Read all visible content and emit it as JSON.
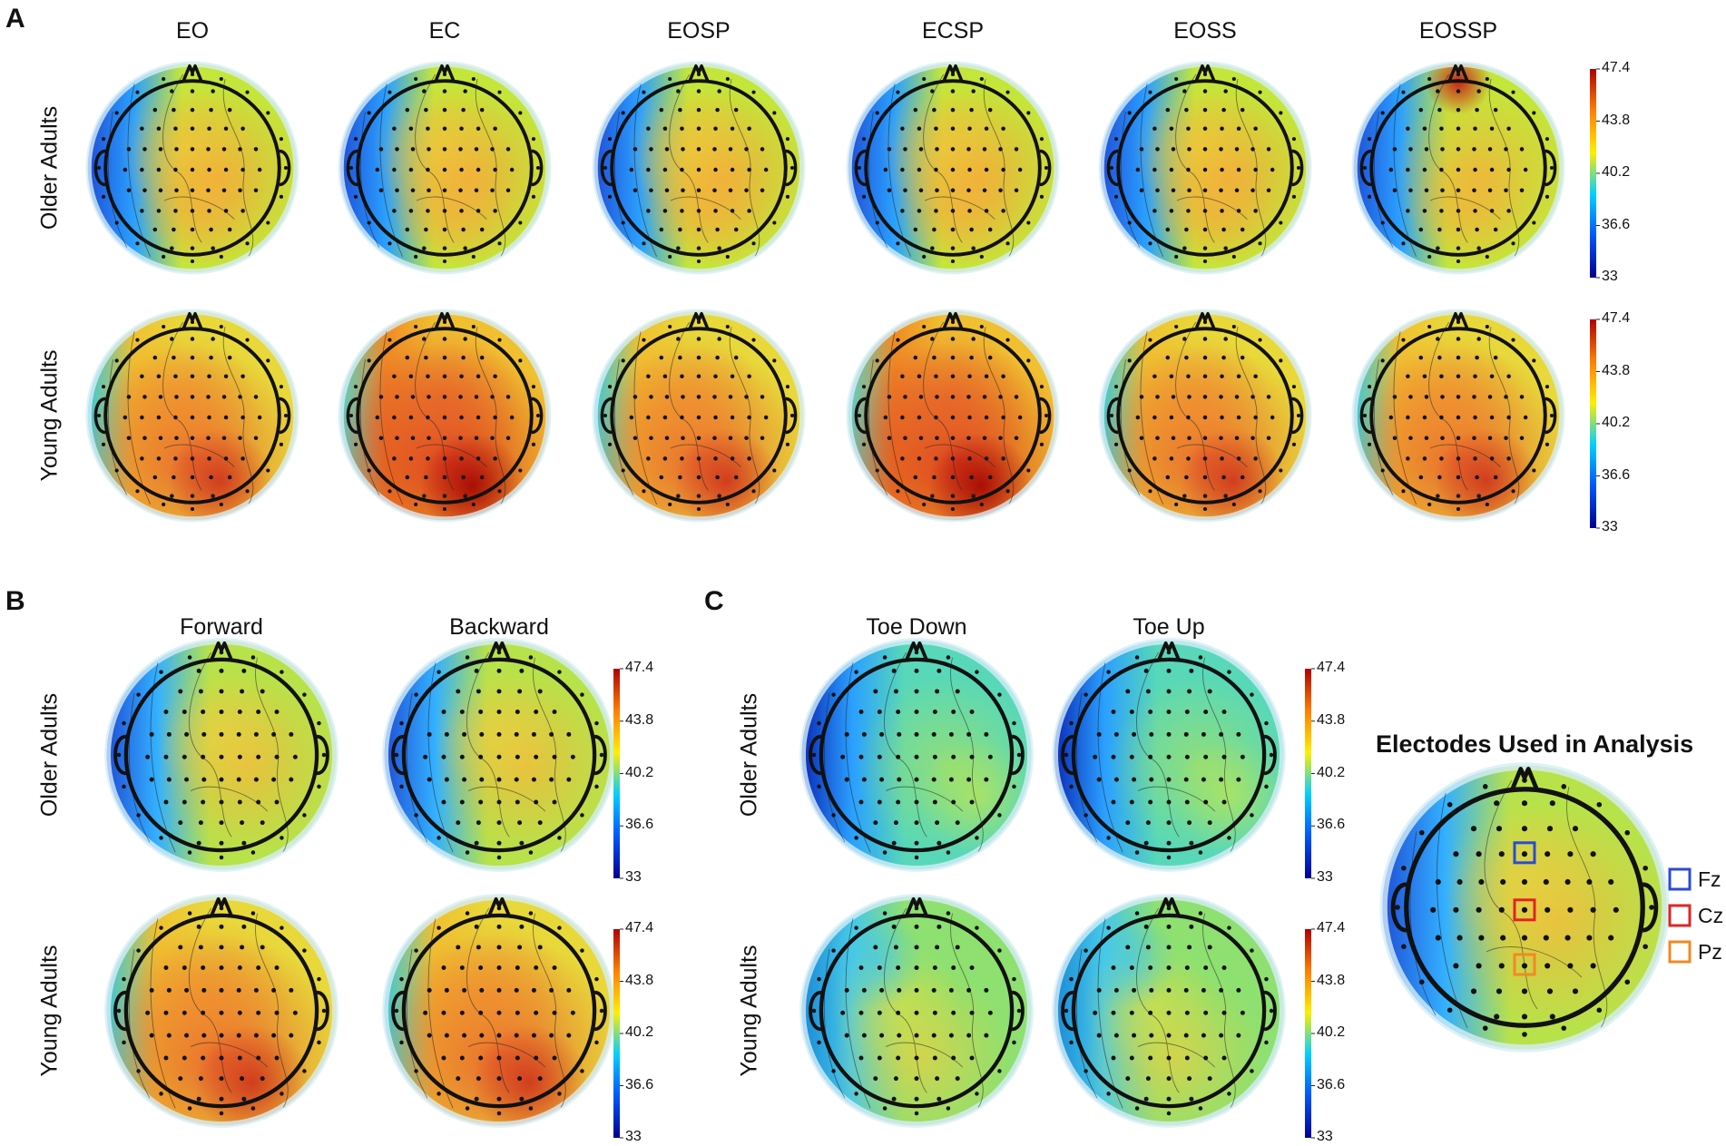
{
  "panels": {
    "a": {
      "letter": "A",
      "columns": [
        "EO",
        "EC",
        "EOSP",
        "ECSP",
        "EOSS",
        "EOSSP"
      ],
      "rows": [
        "Older Adults",
        "Young Adults"
      ]
    },
    "b": {
      "letter": "B",
      "columns": [
        "Forward",
        "Backward"
      ],
      "rows": [
        "Older Adults",
        "Young Adults"
      ]
    },
    "c": {
      "letter": "C",
      "columns": [
        "Toe Down",
        "Toe Up"
      ],
      "rows": [
        "Older Adults",
        "Young Adults"
      ]
    }
  },
  "colorbar": {
    "ticks": [
      "47.4",
      "43.8",
      "40.2",
      "36.6",
      "33"
    ],
    "min": 33,
    "max": 47.4,
    "colors": [
      "#00008f",
      "#0055ff",
      "#00d0ff",
      "#ffee00",
      "#ff7f00",
      "#b00000"
    ]
  },
  "electrodes": {
    "title": "Electodes Used in Analysis",
    "legend": [
      {
        "label": "Fz",
        "color": "#2b4bd6"
      },
      {
        "label": "Cz",
        "color": "#e02424"
      },
      {
        "label": "Pz",
        "color": "#f08a24"
      }
    ]
  }
}
